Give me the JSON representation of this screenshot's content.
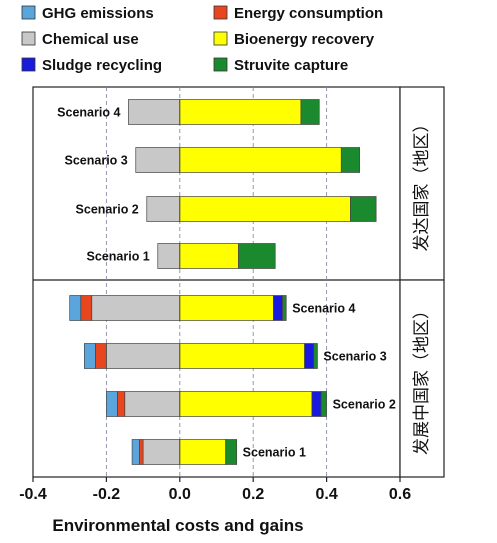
{
  "chart_data": {
    "type": "bar",
    "orientation": "horizontal",
    "stacked": true,
    "xlabel": "Environmental costs and gains",
    "xlim": [
      -0.4,
      0.6
    ],
    "xticks": [
      "-0.4",
      "-0.2",
      "0.0",
      "0.2",
      "0.4",
      "0.6"
    ],
    "grid": "dashed vertical",
    "legend_position": "top",
    "legend": [
      {
        "name": "GHG emissions",
        "color": "#5aa6dc"
      },
      {
        "name": "Energy consumption",
        "color": "#e8461e"
      },
      {
        "name": "Chemical use",
        "color": "#c8c8c8"
      },
      {
        "name": "Bioenergy recovery",
        "color": "#ffff00"
      },
      {
        "name": "Sludge recycling",
        "color": "#1a1adf"
      },
      {
        "name": "Struvite capture",
        "color": "#1b8a2e"
      }
    ],
    "panels": [
      {
        "title": "发达国家（地区）",
        "label_side": "left",
        "categories": [
          "Scenario 4",
          "Scenario 3",
          "Scenario 2",
          "Scenario 1"
        ],
        "series": [
          {
            "name": "Chemical use",
            "values": [
              -0.14,
              -0.12,
              -0.09,
              -0.06
            ]
          },
          {
            "name": "GHG emissions",
            "values": [
              0,
              0,
              0,
              0
            ]
          },
          {
            "name": "Energy consumption",
            "values": [
              0,
              0,
              0,
              0
            ]
          },
          {
            "name": "Bioenergy recovery",
            "values": [
              0.33,
              0.44,
              0.465,
              0.16
            ]
          },
          {
            "name": "Sludge recycling",
            "values": [
              0,
              0,
              0,
              0
            ]
          },
          {
            "name": "Struvite capture",
            "values": [
              0.05,
              0.05,
              0.07,
              0.1
            ]
          }
        ]
      },
      {
        "title": "发展中国家（地区）",
        "label_side": "right",
        "categories": [
          "Scenario 4",
          "Scenario 3",
          "Scenario 2",
          "Scenario 1"
        ],
        "series": [
          {
            "name": "Chemical use",
            "values": [
              -0.24,
              -0.2,
              -0.15,
              -0.1
            ]
          },
          {
            "name": "Energy consumption",
            "values": [
              -0.03,
              -0.03,
              -0.02,
              -0.01
            ]
          },
          {
            "name": "GHG emissions",
            "values": [
              -0.03,
              -0.03,
              -0.03,
              -0.02
            ]
          },
          {
            "name": "Bioenergy recovery",
            "values": [
              0.255,
              0.34,
              0.36,
              0.125
            ]
          },
          {
            "name": "Sludge recycling",
            "values": [
              0.025,
              0.025,
              0.025,
              0
            ]
          },
          {
            "name": "Struvite capture",
            "values": [
              0.01,
              0.01,
              0.015,
              0.03
            ]
          }
        ]
      }
    ]
  }
}
